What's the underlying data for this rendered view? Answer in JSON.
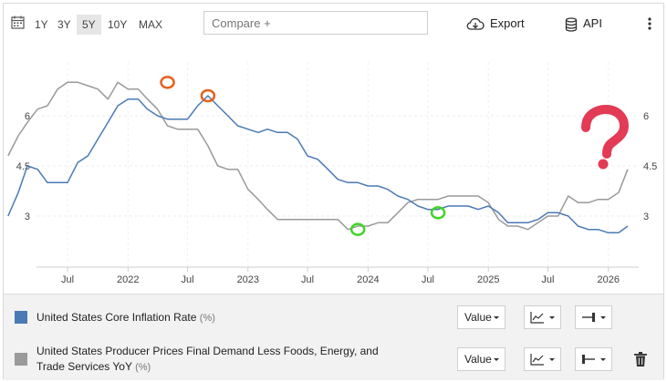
{
  "toolbar": {
    "ranges": [
      "1Y",
      "3Y",
      "5Y",
      "10Y",
      "MAX"
    ],
    "active_range": "5Y",
    "compare_placeholder": "Compare +",
    "export_label": "Export",
    "api_label": "API"
  },
  "chart_data": {
    "type": "line",
    "title": "",
    "xlabel": "",
    "ylabel": "",
    "x_ticks": [
      "Jul",
      "2022",
      "Jul",
      "2023",
      "Jul",
      "2024",
      "Jul",
      "2025",
      "Jul",
      "2026"
    ],
    "y_ticks": [
      3,
      4.5,
      6
    ],
    "ylim": [
      1.5,
      7.5
    ],
    "grid": true,
    "series": [
      {
        "name": "United States Core Inflation Rate",
        "color": "#4a7ab6",
        "x": [
          "2021-01",
          "2021-02",
          "2021-03",
          "2021-04",
          "2021-05",
          "2021-06",
          "2021-07",
          "2021-08",
          "2021-09",
          "2021-10",
          "2021-11",
          "2021-12",
          "2022-01",
          "2022-02",
          "2022-03",
          "2022-04",
          "2022-05",
          "2022-06",
          "2022-07",
          "2022-08",
          "2022-09",
          "2022-10",
          "2022-11",
          "2022-12",
          "2023-01",
          "2023-02",
          "2023-03",
          "2023-04",
          "2023-05",
          "2023-06",
          "2023-07",
          "2023-08",
          "2023-09",
          "2023-10",
          "2023-11",
          "2023-12",
          "2024-01",
          "2024-02",
          "2024-03",
          "2024-04",
          "2024-05",
          "2024-06",
          "2024-07",
          "2024-08",
          "2024-09",
          "2024-10",
          "2024-11",
          "2024-12",
          "2025-01",
          "2025-02",
          "2025-03",
          "2025-04",
          "2025-05",
          "2025-06",
          "2025-07",
          "2025-08",
          "2025-09",
          "2025-10",
          "2025-11",
          "2025-12",
          "2026-01",
          "2026-02",
          "2026-03"
        ],
        "values": [
          3.0,
          3.7,
          4.5,
          4.4,
          4.0,
          4.0,
          4.0,
          4.6,
          4.8,
          5.3,
          5.8,
          6.3,
          6.5,
          6.5,
          6.2,
          6.0,
          5.9,
          5.9,
          5.9,
          6.3,
          6.6,
          6.3,
          6.0,
          5.7,
          5.6,
          5.5,
          5.6,
          5.5,
          5.5,
          5.3,
          4.8,
          4.7,
          4.4,
          4.1,
          4.0,
          4.0,
          3.9,
          3.9,
          3.8,
          3.6,
          3.5,
          3.3,
          3.2,
          3.2,
          3.3,
          3.3,
          3.3,
          3.2,
          3.3,
          3.1,
          2.8,
          2.8,
          2.8,
          2.9,
          3.1,
          3.1,
          3.0,
          2.7,
          2.6,
          2.6,
          2.5,
          2.5,
          2.7
        ]
      },
      {
        "name": "United States Producer Prices Final Demand Less Foods, Energy, and Trade Services YoY",
        "color": "#9a9a9a",
        "x": [
          "2021-01",
          "2021-02",
          "2021-03",
          "2021-04",
          "2021-05",
          "2021-06",
          "2021-07",
          "2021-08",
          "2021-09",
          "2021-10",
          "2021-11",
          "2021-12",
          "2022-01",
          "2022-02",
          "2022-03",
          "2022-04",
          "2022-05",
          "2022-06",
          "2022-07",
          "2022-08",
          "2022-09",
          "2022-10",
          "2022-11",
          "2022-12",
          "2023-01",
          "2023-02",
          "2023-03",
          "2023-04",
          "2023-05",
          "2023-06",
          "2023-07",
          "2023-08",
          "2023-09",
          "2023-10",
          "2023-11",
          "2023-12",
          "2024-01",
          "2024-02",
          "2024-03",
          "2024-04",
          "2024-05",
          "2024-06",
          "2024-07",
          "2024-08",
          "2024-09",
          "2024-10",
          "2024-11",
          "2024-12",
          "2025-01",
          "2025-02",
          "2025-03",
          "2025-04",
          "2025-05",
          "2025-06",
          "2025-07",
          "2025-08",
          "2025-09",
          "2025-10",
          "2025-11",
          "2025-12",
          "2026-01",
          "2026-02",
          "2026-03"
        ],
        "values": [
          4.8,
          5.4,
          5.8,
          6.2,
          6.3,
          6.8,
          7.0,
          7.0,
          6.9,
          6.8,
          6.5,
          7.0,
          6.8,
          6.8,
          6.5,
          6.2,
          5.7,
          5.6,
          5.6,
          5.6,
          5.1,
          4.5,
          4.4,
          4.4,
          3.8,
          3.5,
          3.2,
          2.9,
          2.9,
          2.9,
          2.9,
          2.9,
          2.9,
          2.9,
          2.6,
          2.7,
          2.7,
          2.8,
          2.8,
          3.1,
          3.4,
          3.5,
          3.5,
          3.5,
          3.6,
          3.6,
          3.6,
          3.6,
          3.4,
          2.9,
          2.7,
          2.7,
          2.6,
          2.8,
          3.0,
          3.0,
          3.6,
          3.4,
          3.4,
          3.5,
          3.5,
          3.7,
          4.4
        ]
      }
    ],
    "annotations": [
      {
        "type": "circle",
        "color": "#e8611c",
        "x": "2022-05",
        "y": 7.0
      },
      {
        "type": "circle",
        "color": "#e8611c",
        "x": "2022-09",
        "y": 6.6
      },
      {
        "type": "circle",
        "color": "#3fd427",
        "x": "2023-12",
        "y": 2.6
      },
      {
        "type": "circle",
        "color": "#3fd427",
        "x": "2024-08",
        "y": 3.1
      }
    ],
    "question_mark_color": "#e33a55"
  },
  "legend": {
    "items": [
      {
        "name": "United States Core Inflation Rate",
        "unit": "(%)",
        "color": "#4a7ab6",
        "value_label": "Value"
      },
      {
        "name_line1": "United States Producer Prices Final Demand Less Foods, Energy, and",
        "name_line2": "Trade Services YoY",
        "unit": "(%)",
        "color": "#9a9a9a",
        "value_label": "Value"
      }
    ]
  }
}
